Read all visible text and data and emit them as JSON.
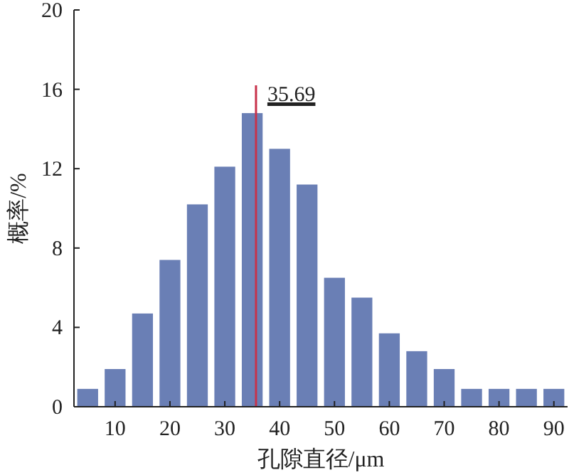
{
  "chart_data": {
    "type": "histogram",
    "xlabel": "孔隙直径/μm",
    "ylabel": "概率/%",
    "bins": [
      2.5,
      7.5,
      12.5,
      17.5,
      22.5,
      27.5,
      32.5,
      37.5,
      42.5,
      47.5,
      52.5,
      57.5,
      62.5,
      67.5,
      72.5,
      77.5,
      82.5,
      87.5,
      92.5
    ],
    "values": [
      0.9,
      1.9,
      4.7,
      7.4,
      10.2,
      12.1,
      14.8,
      13,
      11.2,
      6.5,
      5.5,
      3.7,
      2.8,
      1.9,
      0.9,
      0.9,
      0.9,
      0.9
    ],
    "color": "#6a7fb5",
    "xlim": [
      2.5,
      92.5
    ],
    "xticks": [
      10,
      20,
      30,
      40,
      50,
      60,
      70,
      80,
      90
    ],
    "ylim": [
      0,
      20
    ],
    "yticks": [
      0,
      4,
      8,
      12,
      16,
      20
    ],
    "grid": false,
    "ref_lines": [
      {
        "axis": "x",
        "value": 35.69,
        "label": "35.69",
        "color": "#c8324a"
      }
    ]
  }
}
